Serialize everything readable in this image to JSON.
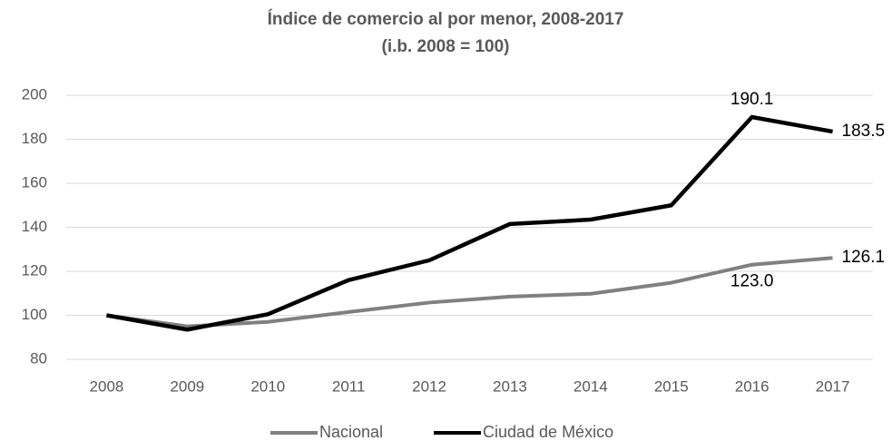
{
  "chart_data": {
    "type": "line",
    "title": "Índice de comercio al por menor, 2008-2017",
    "subtitle": "(i.b. 2008 = 100)",
    "categories": [
      "2008",
      "2009",
      "2010",
      "2011",
      "2012",
      "2013",
      "2014",
      "2015",
      "2016",
      "2017"
    ],
    "series": [
      {
        "name": "Nacional",
        "color": "#808080",
        "values": [
          100,
          95,
          97,
          101.5,
          105.8,
          108.5,
          109.8,
          114.8,
          123.0,
          126.1
        ],
        "value_labels": [
          null,
          null,
          null,
          null,
          null,
          null,
          null,
          null,
          "123.0",
          "126.1"
        ]
      },
      {
        "name": "Ciudad de México",
        "color": "#000000",
        "values": [
          100,
          93.5,
          100.5,
          116,
          125,
          141.5,
          143.5,
          150,
          190.1,
          183.5
        ],
        "value_labels": [
          null,
          null,
          null,
          null,
          null,
          null,
          null,
          null,
          "190.1",
          "183.5"
        ]
      }
    ],
    "ylim": [
      80,
      200
    ],
    "yticks": [
      80,
      100,
      120,
      140,
      160,
      180,
      200
    ],
    "grid": true,
    "legend": "bottom"
  }
}
